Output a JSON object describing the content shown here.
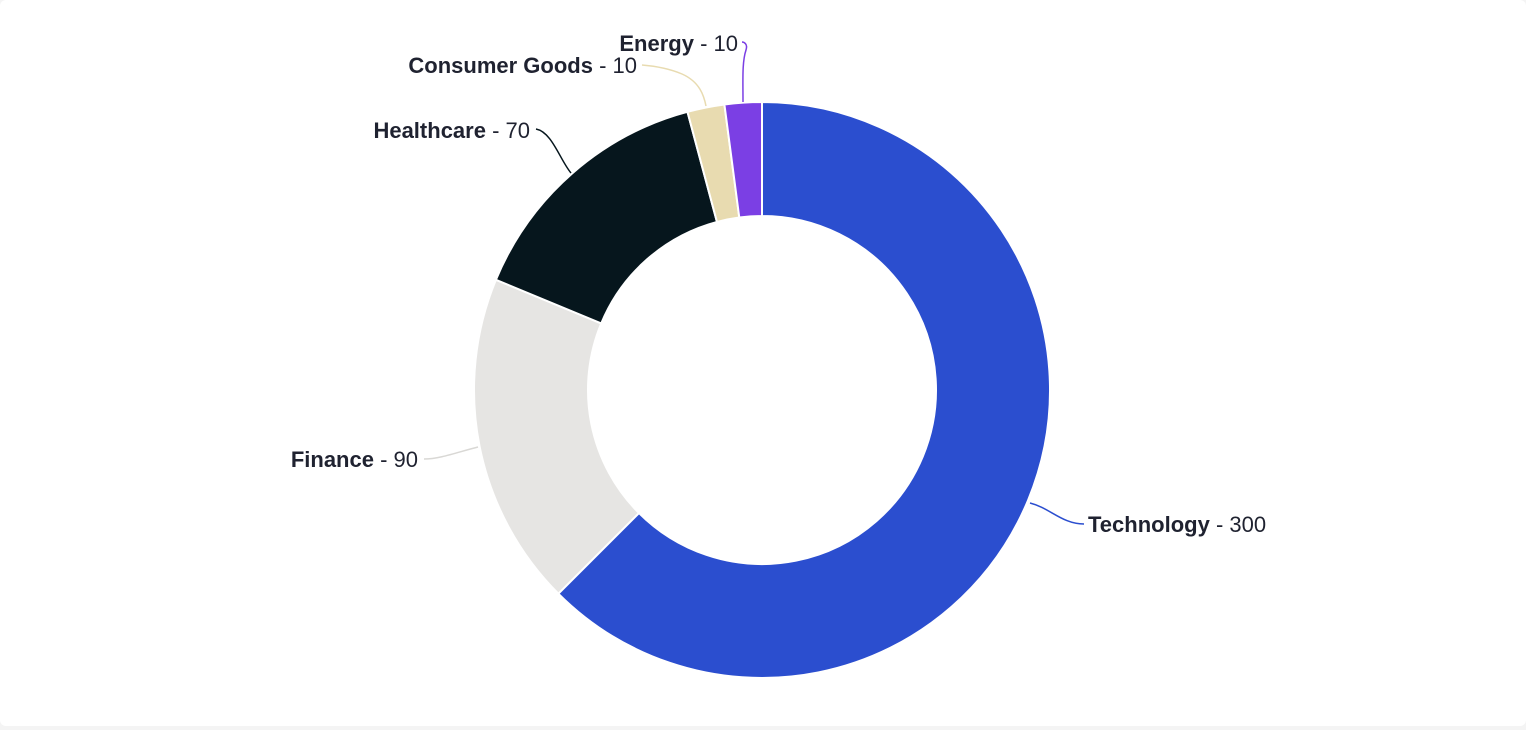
{
  "chart_data": {
    "type": "pie",
    "variant": "donut",
    "title": "",
    "slices": [
      {
        "label": "Technology",
        "value": 300,
        "color": "#2b4ecf",
        "display": "Technology - 300"
      },
      {
        "label": "Finance",
        "value": 90,
        "color": "#e6e5e3",
        "display": "Finance - 90"
      },
      {
        "label": "Healthcare",
        "value": 70,
        "color": "#06161d",
        "display": "Healthcare - 70"
      },
      {
        "label": "Consumer Goods",
        "value": 10,
        "color": "#e8dbb0",
        "display": "Consumer Goods - 10"
      },
      {
        "label": "Energy",
        "value": 10,
        "color": "#7b3fe4",
        "display": "Energy - 10"
      }
    ],
    "start_angle": "12 o'clock",
    "direction": "clockwise",
    "legend": "none",
    "labels": "outside with leader lines"
  }
}
